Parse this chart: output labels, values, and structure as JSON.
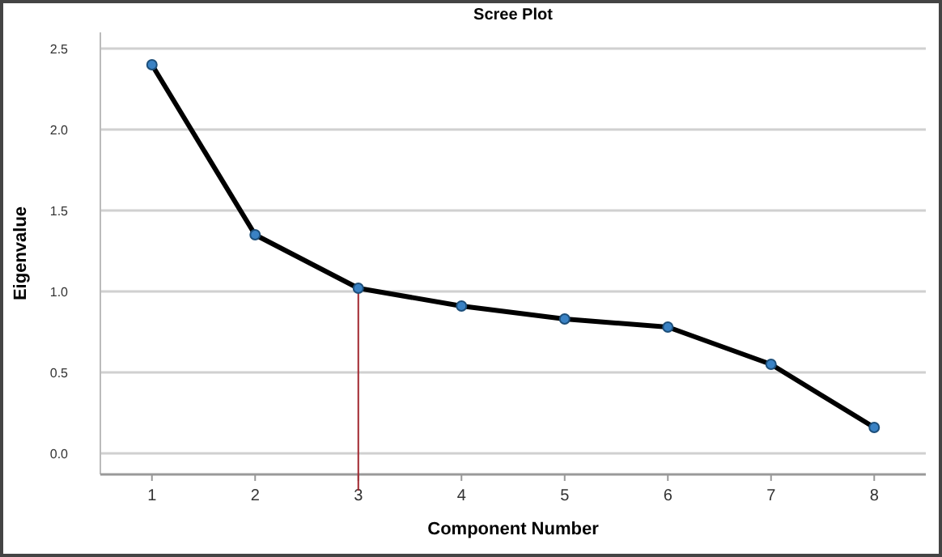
{
  "chart_data": {
    "type": "line",
    "title": "Scree Plot",
    "xlabel": "Component Number",
    "ylabel": "Eigenvalue",
    "categories": [
      "1",
      "2",
      "3",
      "4",
      "5",
      "6",
      "7",
      "8"
    ],
    "series": [
      {
        "color": "#000000",
        "values": [
          2.4,
          1.35,
          1.02,
          0.91,
          0.83,
          0.78,
          0.55,
          0.16
        ]
      }
    ],
    "marker": "circle",
    "line_style": "solid",
    "ylim": [
      -0.13,
      2.6
    ],
    "yticks": [
      {
        "value": 0,
        "label": "0.0"
      },
      0.5,
      {
        "value": 1,
        "label": "1.0"
      },
      1.5,
      {
        "value": 2,
        "label": "2.0"
      },
      2.5
    ],
    "grid": "y",
    "ref_lines": [
      {
        "axis": "x",
        "value": "3",
        "color": "#a0262e"
      }
    ]
  }
}
